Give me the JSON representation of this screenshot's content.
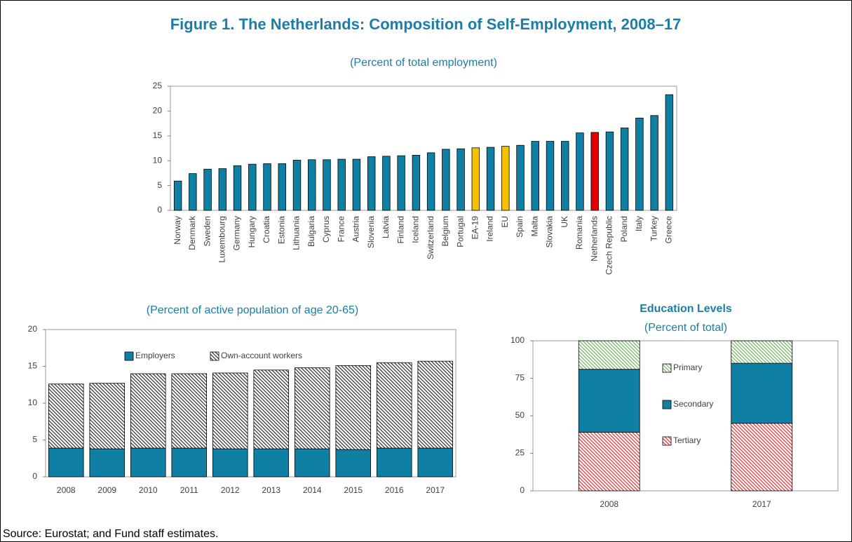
{
  "title": "Figure 1. The Netherlands: Composition of Self-Employment, 2008–17",
  "source": "Source: Eurostat; and Fund staff estimates.",
  "chart_data": [
    {
      "type": "bar",
      "title": "(Percent of total employment)",
      "categories": [
        "Norway",
        "Denmark",
        "Sweden",
        "Luxembourg",
        "Germany",
        "Hungary",
        "Croatia",
        "Estonia",
        "Lithuania",
        "Bulgaria",
        "Cyprus",
        "France",
        "Austria",
        "Slovenia",
        "Latvia",
        "Finland",
        "Iceland",
        "Switzerland",
        "Belgium",
        "Portugal",
        "EA-19",
        "Ireland",
        "EU",
        "Spain",
        "Malta",
        "Slovakia",
        "UK",
        "Romania",
        "Netherlands",
        "Czech Republic",
        "Poland",
        "Italy",
        "Turkey",
        "Greece"
      ],
      "values": [
        5.9,
        7.4,
        8.3,
        8.4,
        9.0,
        9.3,
        9.4,
        9.4,
        10.1,
        10.2,
        10.2,
        10.3,
        10.3,
        10.8,
        10.9,
        11.0,
        11.1,
        11.6,
        12.3,
        12.4,
        12.6,
        12.7,
        12.9,
        13.1,
        13.9,
        13.9,
        13.9,
        15.6,
        15.7,
        15.8,
        16.6,
        18.6,
        19.1,
        23.3
      ],
      "colors": [
        "#0f7fa3",
        "#0f7fa3",
        "#0f7fa3",
        "#0f7fa3",
        "#0f7fa3",
        "#0f7fa3",
        "#0f7fa3",
        "#0f7fa3",
        "#0f7fa3",
        "#0f7fa3",
        "#0f7fa3",
        "#0f7fa3",
        "#0f7fa3",
        "#0f7fa3",
        "#0f7fa3",
        "#0f7fa3",
        "#0f7fa3",
        "#0f7fa3",
        "#0f7fa3",
        "#0f7fa3",
        "#f5c000",
        "#0f7fa3",
        "#f5c000",
        "#0f7fa3",
        "#0f7fa3",
        "#0f7fa3",
        "#0f7fa3",
        "#0f7fa3",
        "#e00000",
        "#0f7fa3",
        "#0f7fa3",
        "#0f7fa3",
        "#0f7fa3",
        "#0f7fa3"
      ],
      "ylim": [
        0,
        25
      ],
      "yticks": [
        0,
        5,
        10,
        15,
        20,
        25
      ]
    },
    {
      "type": "stacked_bar",
      "title": "(Percent of active population of age 20-65)",
      "categories": [
        "2008",
        "2009",
        "2010",
        "2011",
        "2012",
        "2013",
        "2014",
        "2015",
        "2016",
        "2017"
      ],
      "series": [
        {
          "name": "Employers",
          "color": "#0f7fa3",
          "pattern": "solid",
          "values": [
            3.9,
            3.8,
            3.9,
            3.9,
            3.8,
            3.8,
            3.8,
            3.7,
            3.9,
            3.9
          ]
        },
        {
          "name": "Own-account workers",
          "color": "#333333",
          "pattern": "hatch",
          "values": [
            8.7,
            8.9,
            10.1,
            10.1,
            10.3,
            10.7,
            11.0,
            11.4,
            11.6,
            11.8
          ]
        }
      ],
      "ylim": [
        0,
        20
      ],
      "yticks": [
        0,
        5,
        10,
        15,
        20
      ],
      "legend": "top"
    },
    {
      "type": "stacked_bar",
      "title": "Education Levels",
      "subtitle": "(Percent of total)",
      "categories": [
        "2008",
        "2017"
      ],
      "series": [
        {
          "name": "Tertiary",
          "color": "#e83030",
          "pattern": "hatch",
          "values": [
            39,
            45
          ]
        },
        {
          "name": "Secondary",
          "color": "#0f7fa3",
          "pattern": "solid",
          "values": [
            42,
            40
          ]
        },
        {
          "name": "Primary",
          "color": "#70b860",
          "pattern": "hatch",
          "values": [
            19,
            15
          ]
        }
      ],
      "ylim": [
        0,
        100
      ],
      "yticks": [
        0,
        25,
        50,
        75,
        100
      ],
      "legend": "right"
    }
  ]
}
